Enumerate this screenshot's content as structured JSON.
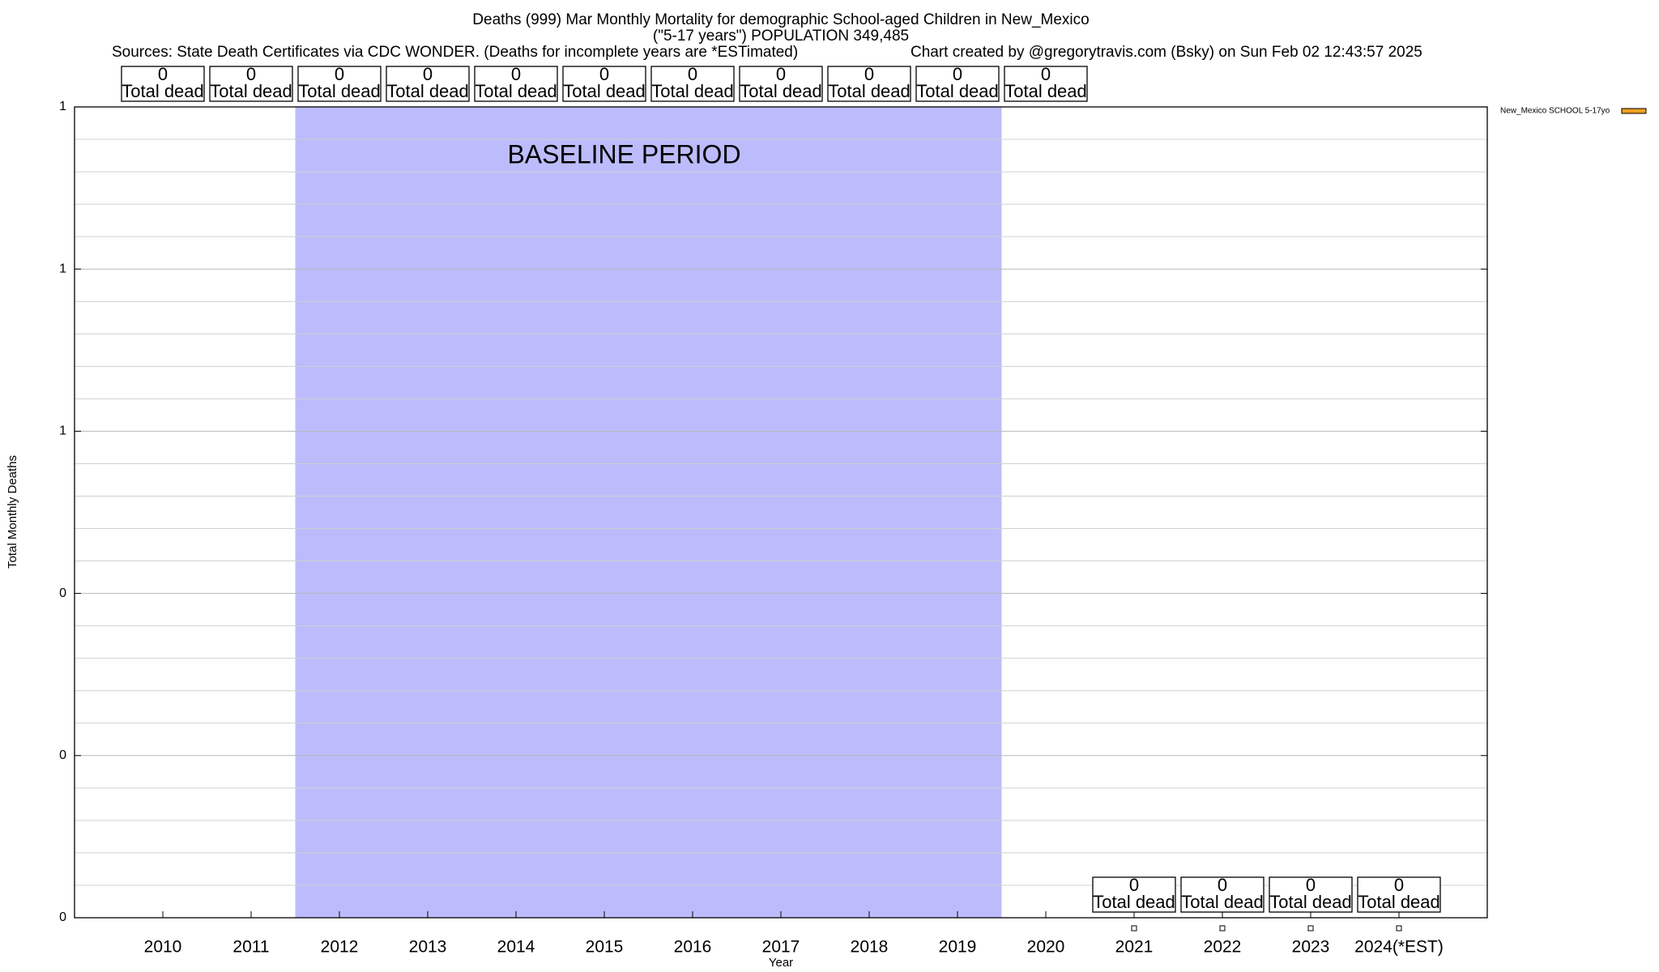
{
  "chart_data": {
    "type": "bar",
    "title": "Deaths (999) Mar Monthly Mortality for demographic School-aged Children in New_Mexico",
    "subtitle": "(\"5-17 years\") POPULATION 349,485",
    "source": "Sources: State Death Certificates via CDC WONDER. (Deaths for incomplete years are *ESTimated)",
    "credit": "Chart created by @gregorytravis.com (Bsky) on Sun Feb 02 12:43:57 2025",
    "x_label": "Year",
    "y_label": "Total Monthly Deaths",
    "categories": [
      "2010",
      "2011",
      "2012",
      "2013",
      "2014",
      "2015",
      "2016",
      "2017",
      "2018",
      "2019",
      "2020",
      "2021",
      "2022",
      "2023",
      "2024(*EST)"
    ],
    "series": [
      {
        "name": "New_Mexico SCHOOL 5-17yo",
        "color": "#f0a020",
        "values": [
          0,
          0,
          0,
          0,
          0,
          0,
          0,
          0,
          0,
          0,
          0,
          0,
          0,
          0,
          0
        ]
      }
    ],
    "value_label_text": "Total dead",
    "baseline": {
      "label": "BASELINE PERIOD",
      "from": "2012",
      "to": "2019",
      "color": "#bcbcfc"
    },
    "ylim": [
      0,
      1
    ],
    "yticks": [
      0,
      {
        "value": 0.2,
        "label": "0"
      },
      {
        "value": 0.4,
        "label": "0"
      },
      {
        "value": 0.6,
        "label": "1"
      },
      {
        "value": 0.8,
        "label": "1"
      },
      1
    ],
    "grid": true,
    "minor_grid_divisions": 5,
    "legend_position": "top-right"
  }
}
